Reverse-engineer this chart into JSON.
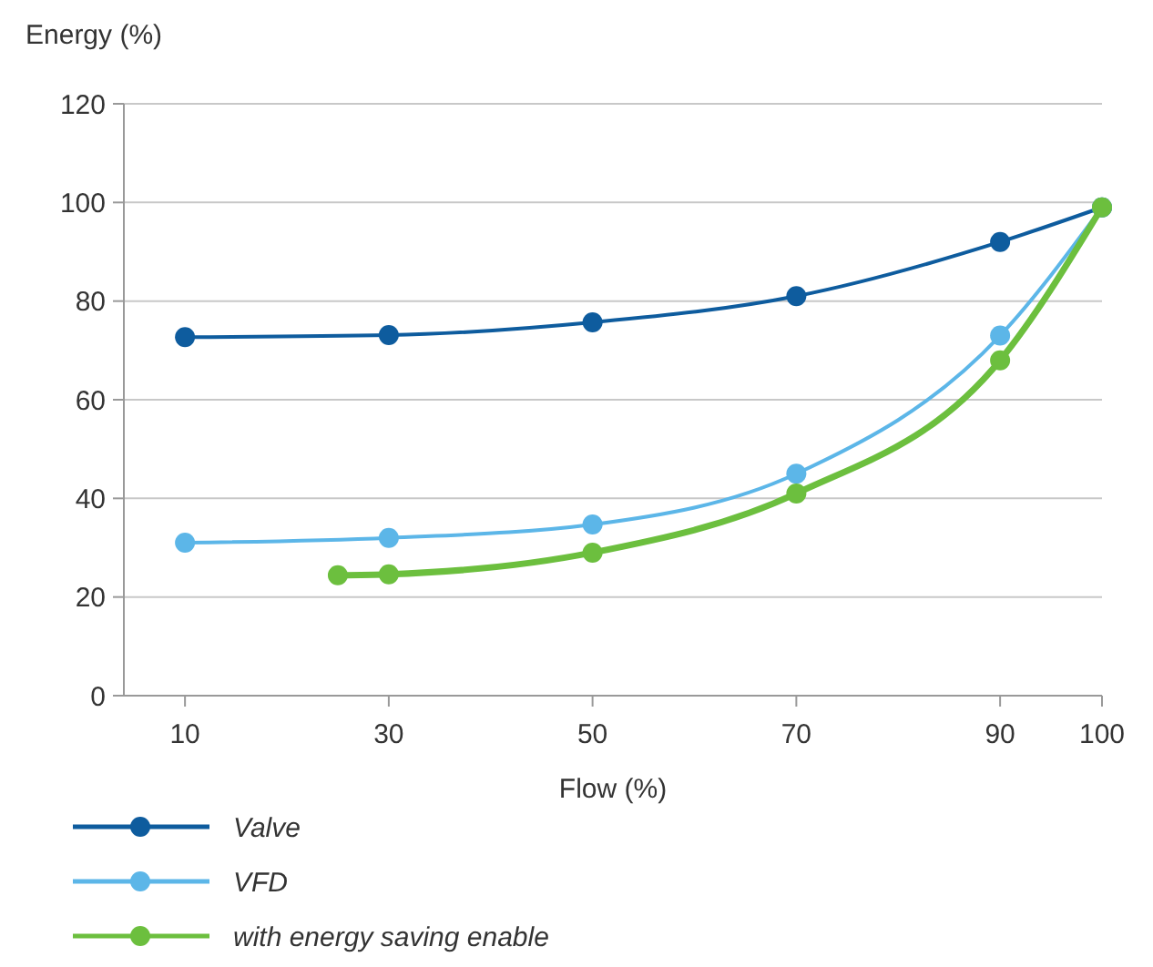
{
  "chart_data": {
    "type": "line",
    "ylabel": "Energy (%)",
    "xlabel": "Flow (%)",
    "xlim": [
      4,
      100
    ],
    "xticks": [
      10,
      30,
      50,
      70,
      90,
      100
    ],
    "ylim": [
      0,
      120
    ],
    "yticks": [
      0,
      20,
      40,
      60,
      80,
      100,
      120
    ],
    "grid": "y",
    "legend": "bottom",
    "marker": "circle",
    "line_style": "solid",
    "series": [
      {
        "name": "Valve",
        "color": "#0e5c9e",
        "x": [
          10,
          30,
          50,
          70,
          90,
          100
        ],
        "values": [
          72.7,
          73.1,
          75.7,
          81,
          92,
          99
        ]
      },
      {
        "name": "VFD",
        "color": "#5cb6e8",
        "x": [
          10,
          30,
          50,
          70,
          90,
          100
        ],
        "values": [
          31,
          32,
          34.7,
          45,
          73,
          99
        ]
      },
      {
        "name": "with energy saving enable",
        "color": "#6cbf3e",
        "x": [
          25,
          30,
          50,
          70,
          90,
          100
        ],
        "values": [
          24.4,
          24.6,
          29,
          41,
          68,
          99
        ]
      }
    ]
  }
}
